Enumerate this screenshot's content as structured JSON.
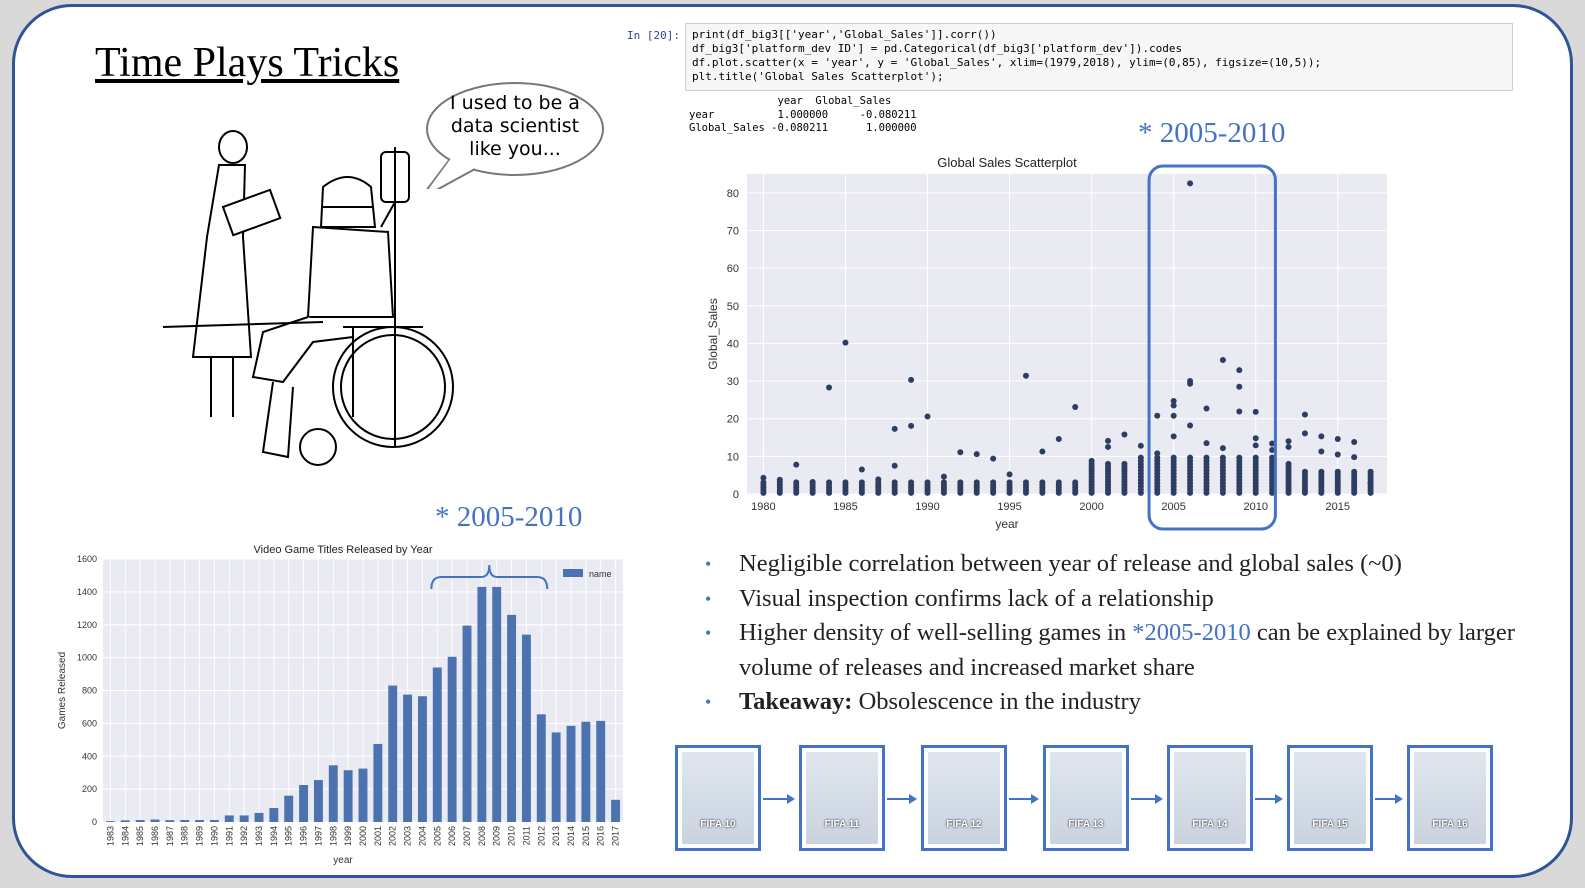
{
  "slide": {
    "title": "Time Plays Tricks",
    "speech_bubble": [
      "I used to be a",
      "data scientist",
      "like you..."
    ],
    "note_top": "* 2005-2010",
    "note_bottom": "* 2005-2010"
  },
  "code_cell": {
    "prompt": "In [20]:",
    "lines": [
      "print(df_big3[['year','Global_Sales']].corr())",
      "df_big3['platform_dev ID'] = pd.Categorical(df_big3['platform_dev']).codes",
      "df.plot.scatter(x = 'year', y = 'Global_Sales', xlim=(1979,2018), ylim=(0,85), figsize=(10,5));",
      "plt.title('Global Sales Scatterplot');"
    ],
    "output": "              year  Global_Sales\nyear          1.000000     -0.080211\nGlobal_Sales -0.080211      1.000000"
  },
  "bullets": {
    "b1": "Negligible correlation between year of release and global sales (~0)",
    "b2": "Visual inspection confirms lack of a relationship",
    "b3_pre": "Higher density of well-selling games in ",
    "b3_hl": "*2005-2010",
    "b3_post": " can be explained by larger volume of releases and increased market share",
    "b4_bold": "Takeaway:",
    "b4_rest": " Obsolescence in the industry"
  },
  "covers": [
    "FIFA 10",
    "FIFA 11",
    "FIFA 12",
    "FIFA 13",
    "FIFA 14",
    "FIFA 15",
    "FIFA 16"
  ],
  "colors": {
    "accent": "#4472c4",
    "bar": "#4c72b0",
    "chart_bg": "#eaeaf2",
    "border": "#2f5597"
  },
  "chart_data": [
    {
      "type": "scatter",
      "title": "Global Sales Scatterplot",
      "xlabel": "year",
      "ylabel": "Global_Sales",
      "xlim": [
        1979,
        2018
      ],
      "ylim": [
        0,
        85
      ],
      "xticks": [
        1980,
        1985,
        1990,
        1995,
        2000,
        2005,
        2010,
        2015
      ],
      "yticks": [
        0,
        10,
        20,
        30,
        40,
        50,
        60,
        70,
        80
      ],
      "grid": true,
      "points": [
        [
          1984,
          28.3
        ],
        [
          1985,
          40.2
        ],
        [
          1989,
          30.3
        ],
        [
          1990,
          20.6
        ],
        [
          1988,
          17.3
        ],
        [
          1989,
          18.1
        ],
        [
          1996,
          31.4
        ],
        [
          1999,
          23.1
        ],
        [
          1998,
          14.6
        ],
        [
          2002,
          15.8
        ],
        [
          2001,
          14.1
        ],
        [
          2001,
          12.5
        ],
        [
          2004,
          20.8
        ],
        [
          2005,
          24.7
        ],
        [
          2005,
          23.5
        ],
        [
          2005,
          20.8
        ],
        [
          2005,
          15.3
        ],
        [
          2006,
          82.5
        ],
        [
          2006,
          30.0
        ],
        [
          2006,
          29.3
        ],
        [
          2006,
          18.2
        ],
        [
          2007,
          22.7
        ],
        [
          2008,
          35.6
        ],
        [
          2009,
          32.9
        ],
        [
          2009,
          28.5
        ],
        [
          2009,
          21.9
        ],
        [
          2010,
          21.8
        ],
        [
          2010,
          14.8
        ],
        [
          2013,
          21.1
        ],
        [
          2013,
          16.1
        ],
        [
          2014,
          15.3
        ],
        [
          2015,
          14.6
        ],
        [
          2016,
          13.8
        ],
        [
          1982,
          7.8
        ],
        [
          1988,
          7.5
        ],
        [
          1992,
          11.1
        ],
        [
          1993,
          10.6
        ],
        [
          1994,
          9.4
        ],
        [
          1997,
          11.3
        ],
        [
          2003,
          12.8
        ],
        [
          2011,
          13.4
        ],
        [
          2012,
          14.0
        ],
        [
          1980,
          4.3
        ],
        [
          1981,
          3.8
        ],
        [
          1983,
          3.2
        ],
        [
          1986,
          6.5
        ],
        [
          1987,
          3.9
        ],
        [
          1991,
          4.6
        ],
        [
          1995,
          5.2
        ],
        [
          2000,
          8.8
        ],
        [
          2017,
          2.9
        ],
        [
          2004,
          10.8
        ],
        [
          2007,
          13.5
        ],
        [
          2008,
          12.2
        ],
        [
          2010,
          12.9
        ],
        [
          2011,
          11.7
        ],
        [
          2012,
          12.5
        ],
        [
          2014,
          11.3
        ],
        [
          2015,
          10.5
        ],
        [
          2016,
          9.8
        ]
      ]
    },
    {
      "type": "bar",
      "title": "Video Game Titles Released by Year",
      "xlabel": "year",
      "ylabel": "Games Released",
      "legend": "name",
      "legend_position": "top-right",
      "ylim": [
        0,
        1600
      ],
      "yticks": [
        0,
        200,
        400,
        600,
        800,
        1000,
        1200,
        1400,
        1600
      ],
      "categories": [
        "1983",
        "1984",
        "1985",
        "1986",
        "1987",
        "1988",
        "1989",
        "1990",
        "1991",
        "1992",
        "1993",
        "1994",
        "1995",
        "1996",
        "1997",
        "1998",
        "1999",
        "2000",
        "2001",
        "2002",
        "2003",
        "2004",
        "2005",
        "2006",
        "2007",
        "2008",
        "2009",
        "2010",
        "2011",
        "2012",
        "2013",
        "2014",
        "2015",
        "2016",
        "2017"
      ],
      "values": [
        5,
        10,
        12,
        15,
        11,
        12,
        12,
        12,
        40,
        40,
        55,
        85,
        160,
        225,
        255,
        345,
        315,
        325,
        475,
        830,
        775,
        765,
        940,
        1005,
        1195,
        1430,
        1430,
        1260,
        1140,
        655,
        545,
        585,
        610,
        615,
        135
      ]
    }
  ]
}
